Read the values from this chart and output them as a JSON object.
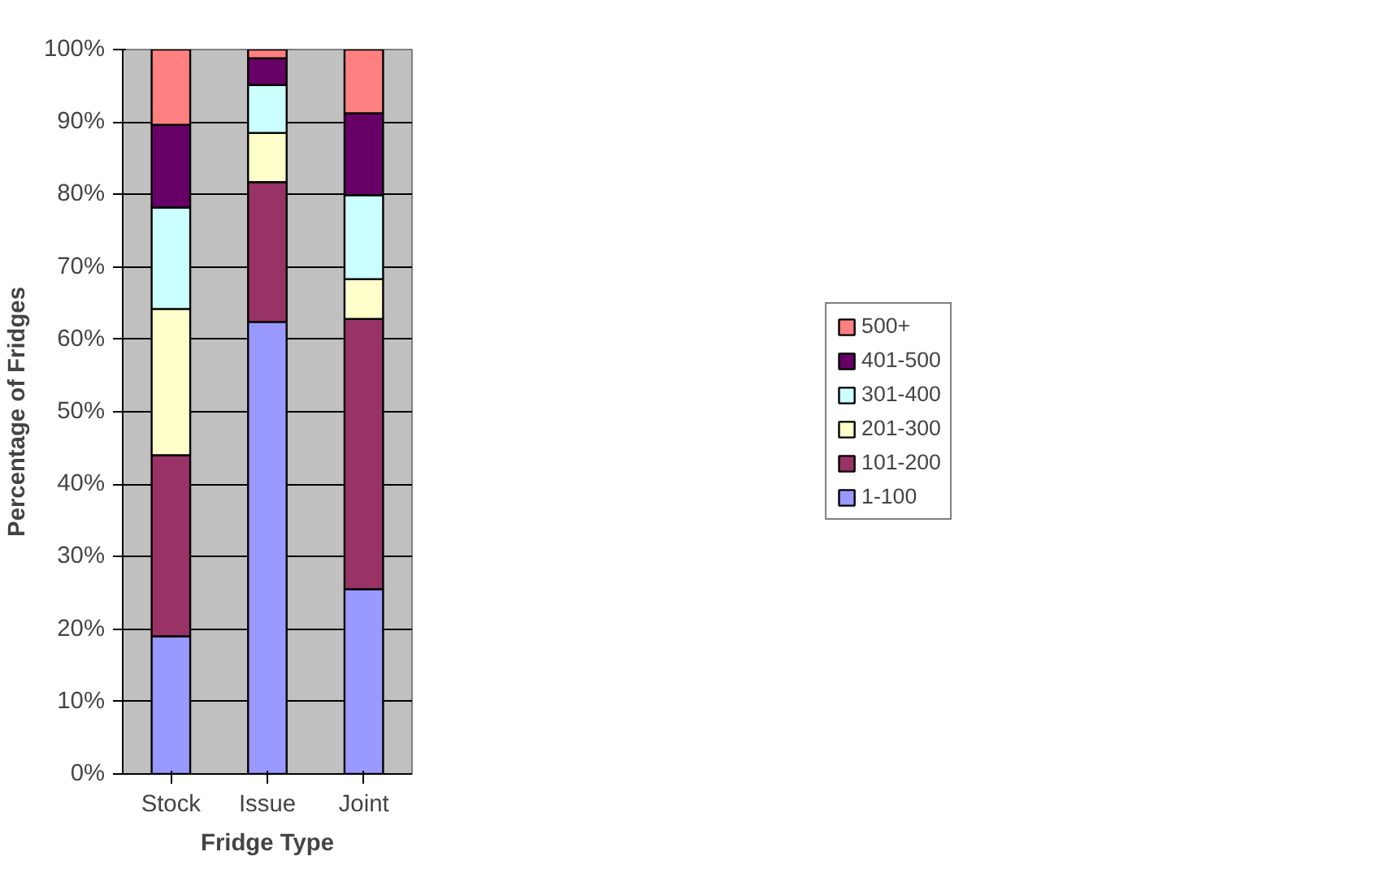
{
  "chart_data": {
    "type": "bar",
    "stacked": true,
    "xlabel": "Fridge Type",
    "ylabel": "Percentage of Fridges",
    "categories": [
      "Stock",
      "Issue",
      "Joint"
    ],
    "series": [
      {
        "name": "1-100",
        "color": "#9999ff",
        "values": [
          19,
          62.4,
          25.5
        ]
      },
      {
        "name": "101-200",
        "color": "#993366",
        "values": [
          25,
          19.3,
          37.3
        ]
      },
      {
        "name": "201-300",
        "color": "#ffffcc",
        "values": [
          20.2,
          6.8,
          5.5
        ]
      },
      {
        "name": "301-400",
        "color": "#ccffff",
        "values": [
          14,
          6.6,
          11.6
        ]
      },
      {
        "name": "401-500",
        "color": "#660066",
        "values": [
          11.4,
          3.7,
          11.3
        ]
      },
      {
        "name": "500+",
        "color": "#ff8080",
        "values": [
          10.4,
          1.2,
          8.8
        ]
      }
    ],
    "ylim": [
      0,
      100
    ],
    "yticks": [
      {
        "value": 0,
        "label": "0%"
      },
      {
        "value": 10,
        "label": "10%"
      },
      {
        "value": 20,
        "label": "20%"
      },
      {
        "value": 30,
        "label": "30%"
      },
      {
        "value": 40,
        "label": "40%"
      },
      {
        "value": 50,
        "label": "50%"
      },
      {
        "value": 60,
        "label": "60%"
      },
      {
        "value": 70,
        "label": "70%"
      },
      {
        "value": 80,
        "label": "80%"
      },
      {
        "value": 90,
        "label": "90%"
      },
      {
        "value": 100,
        "label": "100%"
      }
    ],
    "grid": "y",
    "legend": "right"
  }
}
